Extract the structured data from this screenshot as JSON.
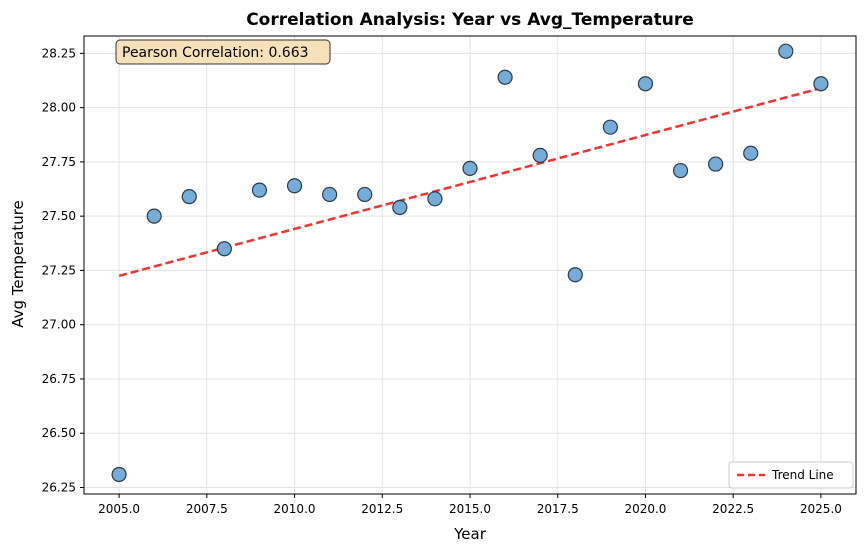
{
  "chart_data": {
    "type": "scatter",
    "title": "Correlation Analysis: Year vs Avg_Temperature",
    "xlabel": "Year",
    "ylabel": "Avg Temperature",
    "xlim": [
      2004.0,
      2026.0
    ],
    "ylim": [
      26.22,
      28.33
    ],
    "xticks": [
      2005.0,
      2007.5,
      2010.0,
      2012.5,
      2015.0,
      2017.5,
      2020.0,
      2022.5,
      2025.0
    ],
    "xtick_labels": [
      "2005.0",
      "2007.5",
      "2010.0",
      "2012.5",
      "2015.0",
      "2017.5",
      "2020.0",
      "2022.5",
      "2025.0"
    ],
    "yticks": [
      26.25,
      26.5,
      26.75,
      27.0,
      27.25,
      27.5,
      27.75,
      28.0,
      28.25
    ],
    "ytick_labels": [
      "26.25",
      "26.50",
      "26.75",
      "27.00",
      "27.25",
      "27.50",
      "27.75",
      "28.00",
      "28.25"
    ],
    "grid": true,
    "points": {
      "x": [
        2005,
        2006,
        2007,
        2008,
        2009,
        2010,
        2011,
        2012,
        2013,
        2014,
        2015,
        2016,
        2017,
        2018,
        2019,
        2020,
        2021,
        2022,
        2023,
        2024,
        2025
      ],
      "y": [
        26.31,
        27.5,
        27.59,
        27.35,
        27.62,
        27.64,
        27.6,
        27.6,
        27.54,
        27.58,
        27.72,
        28.14,
        27.78,
        27.23,
        27.91,
        28.11,
        27.71,
        27.74,
        27.79,
        28.26,
        28.11
      ],
      "color": "#6fa8d6",
      "edge_color": "#2b3a4a"
    },
    "trend_line": {
      "name": "Trend Line",
      "x": [
        2005,
        2025
      ],
      "y": [
        27.225,
        28.09
      ],
      "color": "#ee3333",
      "style": "dashed"
    },
    "annotation": {
      "text": "Pearson Correlation: 0.663",
      "position": "top-left",
      "box_color": "#f5deb3"
    },
    "legend": {
      "position": "bottom-right",
      "entries": [
        "Trend Line"
      ]
    }
  }
}
